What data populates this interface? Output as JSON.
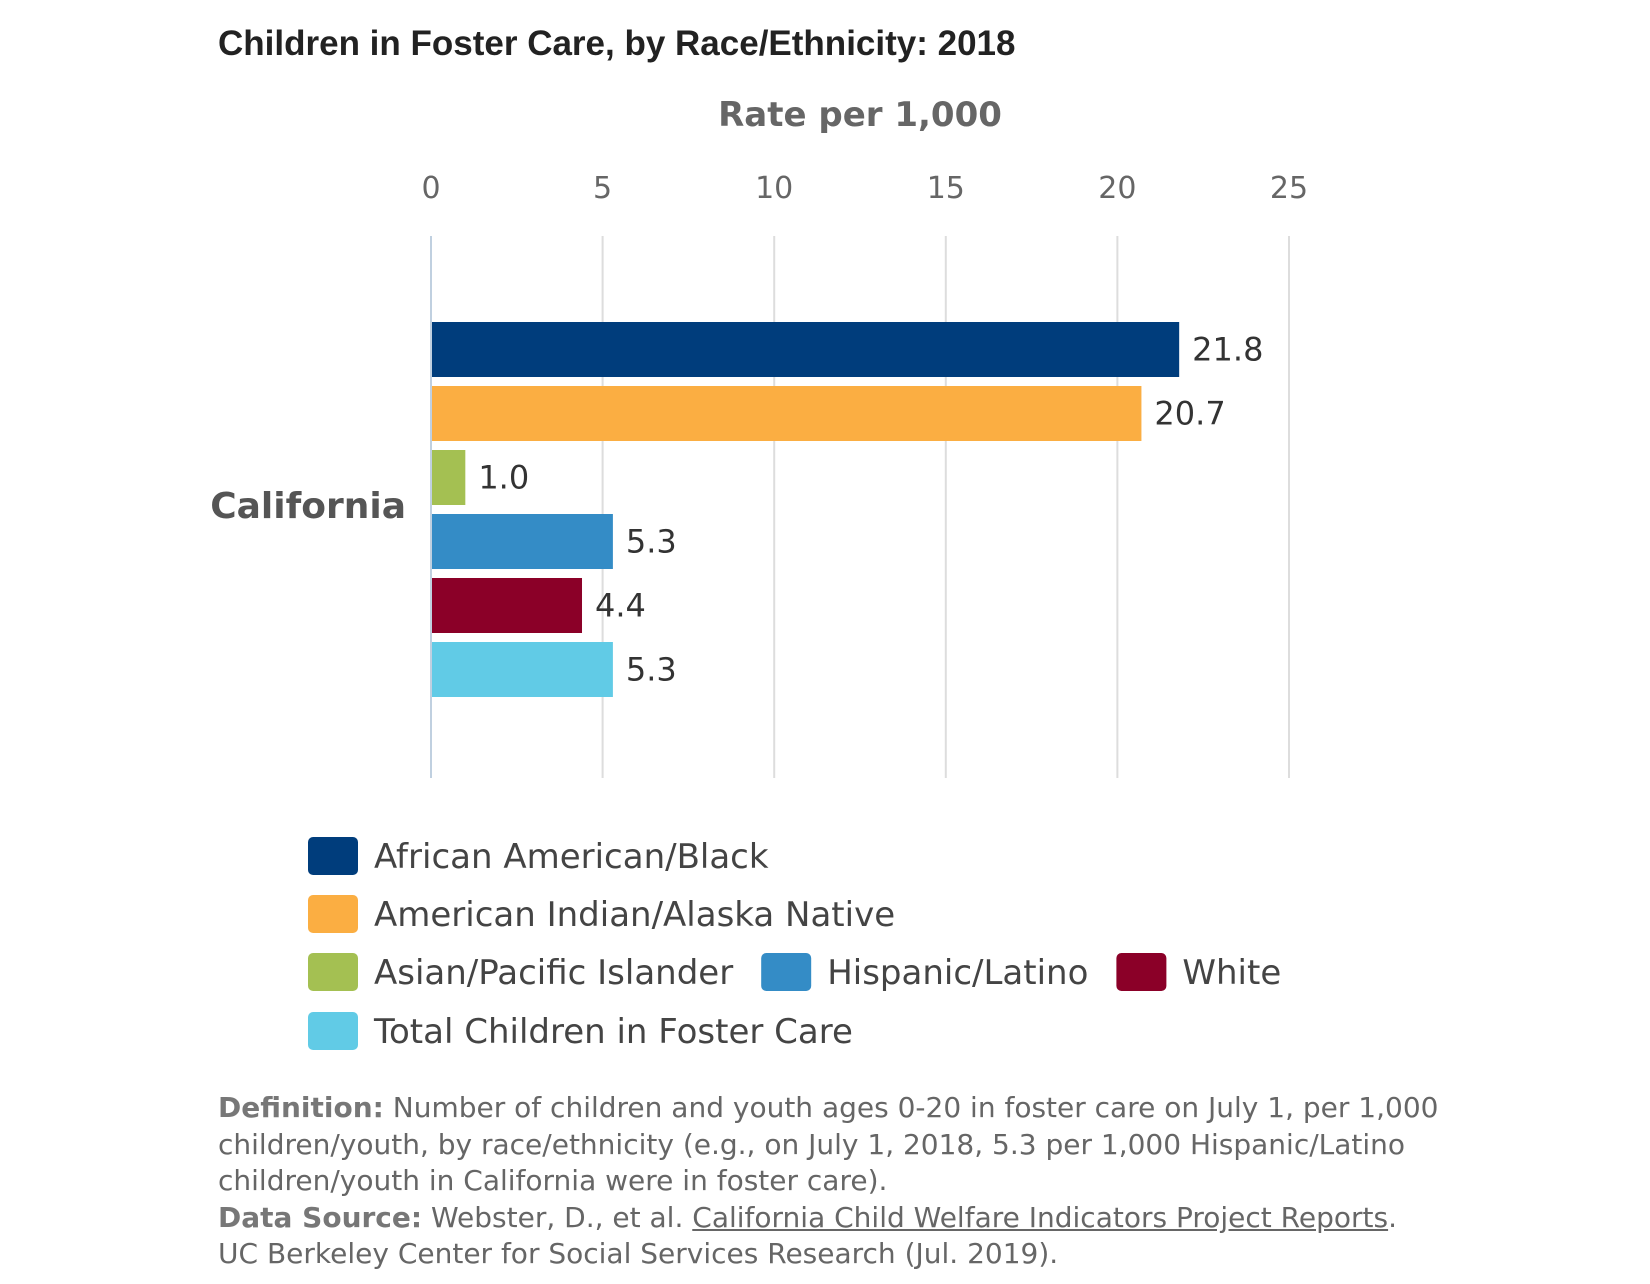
{
  "chart_data": {
    "type": "bar",
    "orientation": "horizontal",
    "title": "Children in Foster Care, by Race/Ethnicity: 2018",
    "xlabel": "Rate per 1,000",
    "ylabel": "",
    "xlim": [
      0,
      25
    ],
    "ticks": [
      "0",
      "5",
      "10",
      "15",
      "20",
      "25"
    ],
    "grid": true,
    "categories": [
      "California"
    ],
    "series": [
      {
        "name": "African American/Black",
        "values": [
          21.8
        ],
        "labels": [
          "21.8"
        ],
        "color": "#003d7c"
      },
      {
        "name": "American Indian/Alaska Native",
        "values": [
          20.7
        ],
        "labels": [
          "20.7"
        ],
        "color": "#fbae42"
      },
      {
        "name": "Asian/Pacific Islander",
        "values": [
          1.0
        ],
        "labels": [
          "1.0"
        ],
        "color": "#a4c052"
      },
      {
        "name": "Hispanic/Latino",
        "values": [
          5.3
        ],
        "labels": [
          "5.3"
        ],
        "color": "#348cc6"
      },
      {
        "name": "White",
        "values": [
          4.4
        ],
        "labels": [
          "4.4"
        ],
        "color": "#8b0028"
      },
      {
        "name": "Total Children in Foster Care",
        "values": [
          5.3
        ],
        "labels": [
          "5.3"
        ],
        "color": "#61cbe6"
      }
    ],
    "legend_position": "bottom"
  },
  "notes": {
    "definition_label": "Definition:",
    "definition_text": "Number of children and youth ages 0-20 in foster care on July 1, per 1,000 children/youth, by race/ethnicity (e.g., on July 1, 2018, 5.3 per 1,000 Hispanic/Latino children/youth in California were in foster care).",
    "source_label": "Data Source:",
    "source_text_before": "Webster, D., et al.",
    "source_link": "California Child Welfare Indicators Project Reports",
    "source_text_after": ".",
    "source_line2": "UC Berkeley Center for Social Services Research (Jul. 2019)."
  }
}
